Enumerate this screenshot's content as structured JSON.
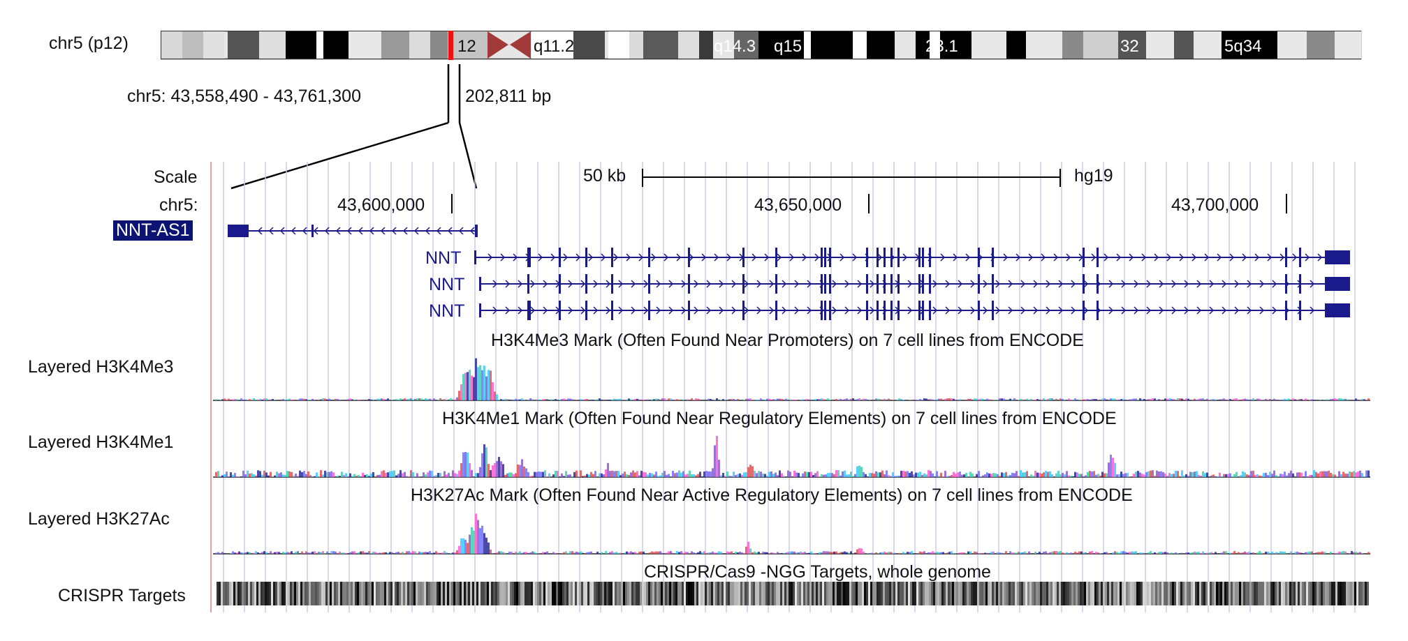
{
  "ideogram": {
    "label": "chr5 (p12)",
    "range_text": "chr5: 43,558,490 - 43,761,300",
    "size_text": "202,811 bp",
    "band_labels": [
      "12",
      "q11.2",
      "q14.3",
      "q15",
      "23.1",
      "32",
      "5q34"
    ]
  },
  "scale": {
    "label": "Scale",
    "bar_text": "50 kb",
    "assembly": "hg19"
  },
  "chrom": {
    "label": "chr5:",
    "ticks": [
      "43,600,000",
      "43,650,000",
      "43,700,000"
    ]
  },
  "genes": {
    "selected": "NNT-AS1",
    "transcripts": [
      "NNT",
      "NNT",
      "NNT"
    ]
  },
  "tracks": [
    {
      "label": "Layered H3K4Me3",
      "title": "H3K4Me3 Mark (Often Found Near Promoters) on 7 cell lines from ENCODE"
    },
    {
      "label": "Layered H3K4Me1",
      "title": "H3K4Me1 Mark (Often Found Near Regulatory Elements) on 7 cell lines from ENCODE"
    },
    {
      "label": "Layered H3K27Ac",
      "title": "H3K27Ac Mark (Often Found Near Active Regulatory Elements) on 7 cell lines from ENCODE"
    },
    {
      "label": "CRISPR Targets",
      "title": "CRISPR/Cas9 -NGG Targets, whole genome"
    }
  ],
  "colors": {
    "gene": "#1a1a8c",
    "highlight": "#ee1111",
    "centromere": "#a33a3a",
    "grid": "#c8c8f0",
    "divider": "#e3a0a0"
  }
}
